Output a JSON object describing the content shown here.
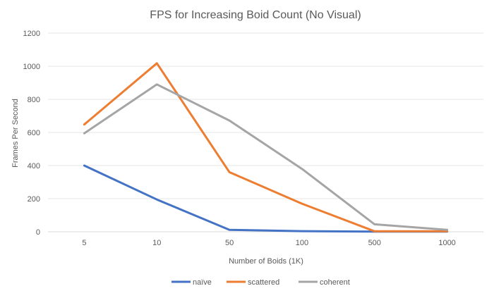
{
  "chart_data": {
    "type": "line",
    "title": "FPS for Increasing Boid Count (No Visual)",
    "xlabel": "Number of Boids (1K)",
    "ylabel": "Frames Per Second",
    "categories": [
      "5",
      "10",
      "50",
      "100",
      "500",
      "1000"
    ],
    "ylim": [
      0,
      1200
    ],
    "yticks": [
      0,
      200,
      400,
      600,
      800,
      1000,
      1200
    ],
    "grid": "horizontal",
    "legend_position": "bottom",
    "series": [
      {
        "name": "naïve",
        "color": "#4472C4",
        "values": [
          400,
          195,
          12,
          4,
          1,
          1
        ]
      },
      {
        "name": "scattered",
        "color": "#ED7D31",
        "values": [
          648,
          1018,
          360,
          170,
          3,
          3
        ]
      },
      {
        "name": "coherent",
        "color": "#A5A5A5",
        "values": [
          595,
          890,
          672,
          380,
          45,
          12
        ]
      }
    ]
  }
}
